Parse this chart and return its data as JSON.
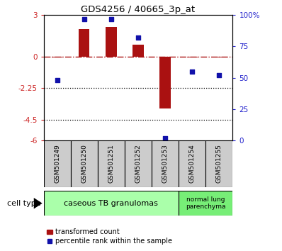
{
  "title": "GDS4256 / 40665_3p_at",
  "samples": [
    "GSM501249",
    "GSM501250",
    "GSM501251",
    "GSM501252",
    "GSM501253",
    "GSM501254",
    "GSM501255"
  ],
  "transformed_count": [
    -0.05,
    2.0,
    2.15,
    0.9,
    -3.7,
    -0.05,
    -0.05
  ],
  "percentile_rank": [
    48,
    97,
    97,
    82,
    2,
    55,
    52
  ],
  "ylim_left": [
    -6,
    3
  ],
  "ylim_right": [
    0,
    100
  ],
  "yticks_left": [
    3,
    0,
    -2.25,
    -4.5,
    -6
  ],
  "yticks_right": [
    100,
    75,
    50,
    25,
    0
  ],
  "ytick_labels_left": [
    "3",
    "0",
    "-2.25",
    "-4.5",
    "-6"
  ],
  "ytick_labels_right": [
    "100%",
    "75",
    "50",
    "25",
    "0"
  ],
  "hlines_dotted": [
    -2.25,
    -4.5
  ],
  "hline_dashed": 0,
  "bar_color": "#aa1111",
  "scatter_color": "#1111aa",
  "cell_type_colors": [
    "#aaffaa",
    "#77ee77"
  ],
  "cell_type_labels": [
    "caseous TB granulomas",
    "normal lung\nparenchyma"
  ],
  "cell_type_n": [
    5,
    2
  ],
  "legend_bar_label": "transformed count",
  "legend_dot_label": "percentile rank within the sample",
  "cell_type_label": "cell type",
  "tick_label_color_left": "#cc2222",
  "tick_label_color_right": "#2222cc",
  "bar_width": 0.4,
  "scatter_size": 20
}
